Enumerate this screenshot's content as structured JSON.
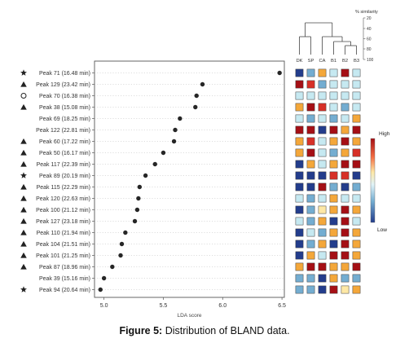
{
  "chart_data": {
    "type": "scatter",
    "xlabel": "LDA score",
    "x_ticks": [
      "5.0",
      "5.5",
      "6.0",
      "6.5"
    ],
    "xlim": [
      4.92,
      6.52
    ],
    "grid": "dotted horizontal",
    "series": [
      {
        "categories": [
          "Peak 71 (16.48 min)",
          "Peak 129 (23.42 min)",
          "Peak 70 (16.38 min)",
          "Peak 38 (15.08 min)",
          "Peak 69 (18.25 min)",
          "Peak 122 (22.81 min)",
          "Peak 60 (17.22 min)",
          "Peak 50 (16.17 min)",
          "Peak 117 (22.39 min)",
          "Peak 89 (20.19 min)",
          "Peak 115 (22.29 min)",
          "Peak 120 (22.63 min)",
          "Peak 100 (21.12 min)",
          "Peak 127 (23.18 min)",
          "Peak 110 (21.94 min)",
          "Peak 104 (21.51 min)",
          "Peak 101 (21.25 min)",
          "Peak 87 (18.96 min)",
          "Peak 39 (15.16 min)",
          "Peak 94 (20.64 min)"
        ],
        "markers": [
          "star",
          "triangle",
          "circle",
          "triangle",
          "",
          "",
          "triangle",
          "triangle",
          "triangle",
          "star",
          "triangle",
          "triangle",
          "triangle",
          "triangle",
          "triangle",
          "triangle",
          "triangle",
          "triangle",
          "",
          "star"
        ],
        "values": [
          6.48,
          5.83,
          5.78,
          5.77,
          5.64,
          5.6,
          5.59,
          5.5,
          5.43,
          5.35,
          5.3,
          5.29,
          5.28,
          5.26,
          5.18,
          5.15,
          5.14,
          5.07,
          5.0,
          4.97
        ]
      }
    ],
    "heatmap": {
      "columns": [
        "DK",
        "SP",
        "CA",
        "B1",
        "B2",
        "B3"
      ],
      "dendrogram_label": "% similarity",
      "dendrogram_ticks": [
        "20",
        "40",
        "60",
        "80",
        "100"
      ],
      "colorbar_labels": [
        "High",
        "Low"
      ],
      "colors": {
        "dark_red": "#a50f15",
        "red": "#d73027",
        "orange": "#f4a73a",
        "light_yellow": "#fee8a6",
        "light_blue": "#c6e9f1",
        "mid_blue": "#74add1",
        "dark_blue": "#233d8c"
      },
      "cells": [
        [
          "dark_blue",
          "mid_blue",
          "orange",
          "light_blue",
          "dark_red",
          "light_blue"
        ],
        [
          "dark_red",
          "red",
          "mid_blue",
          "light_blue",
          "light_blue",
          "light_blue"
        ],
        [
          "light_blue",
          "light_blue",
          "light_blue",
          "light_blue",
          "light_blue",
          "light_blue"
        ],
        [
          "orange",
          "dark_red",
          "red",
          "light_blue",
          "mid_blue",
          "light_blue"
        ],
        [
          "light_blue",
          "mid_blue",
          "light_blue",
          "mid_blue",
          "light_blue",
          "orange"
        ],
        [
          "dark_red",
          "dark_red",
          "dark_blue",
          "dark_red",
          "orange",
          "dark_red"
        ],
        [
          "orange",
          "red",
          "light_blue",
          "orange",
          "dark_red",
          "orange"
        ],
        [
          "orange",
          "dark_red",
          "light_blue",
          "mid_blue",
          "orange",
          "red"
        ],
        [
          "dark_blue",
          "orange",
          "light_blue",
          "orange",
          "dark_red",
          "dark_red"
        ],
        [
          "dark_blue",
          "dark_blue",
          "dark_blue",
          "red",
          "red",
          "dark_blue"
        ],
        [
          "dark_blue",
          "dark_blue",
          "dark_red",
          "mid_blue",
          "dark_blue",
          "mid_blue"
        ],
        [
          "light_blue",
          "mid_blue",
          "light_blue",
          "orange",
          "light_blue",
          "light_blue"
        ],
        [
          "dark_blue",
          "mid_blue",
          "light_yellow",
          "orange",
          "dark_red",
          "orange"
        ],
        [
          "light_blue",
          "mid_blue",
          "orange",
          "dark_blue",
          "dark_red",
          "light_blue"
        ],
        [
          "dark_blue",
          "light_blue",
          "mid_blue",
          "orange",
          "dark_red",
          "orange"
        ],
        [
          "dark_blue",
          "mid_blue",
          "orange",
          "dark_blue",
          "dark_red",
          "orange"
        ],
        [
          "dark_blue",
          "orange",
          "light_blue",
          "dark_red",
          "dark_red",
          "orange"
        ],
        [
          "orange",
          "dark_red",
          "dark_red",
          "orange",
          "orange",
          "dark_red"
        ],
        [
          "mid_blue",
          "mid_blue",
          "dark_blue",
          "orange",
          "mid_blue",
          "mid_blue"
        ],
        [
          "mid_blue",
          "mid_blue",
          "dark_blue",
          "dark_red",
          "light_yellow",
          "orange"
        ]
      ]
    }
  },
  "caption": {
    "label": "Figure 5:",
    "text": " Distribution of BLAND data."
  }
}
